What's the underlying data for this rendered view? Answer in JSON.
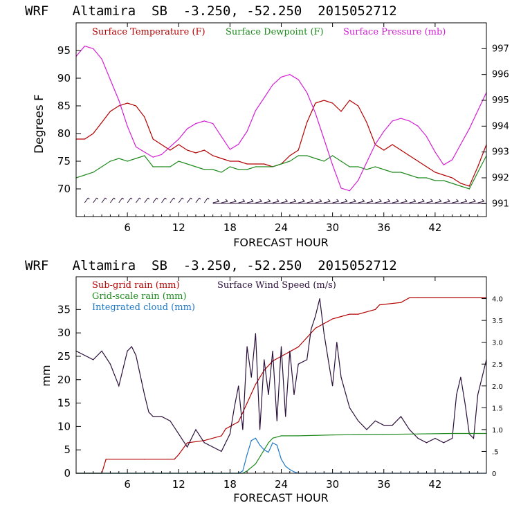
{
  "chart_data": [
    {
      "type": "line",
      "title": "WRF   Altamira  SB  -3.250, -52.250  2015052712",
      "xlabel": "FORECAST HOUR",
      "ylabel": "Degrees F",
      "xlim": [
        0,
        48
      ],
      "ylim": [
        65,
        100
      ],
      "y2lim": [
        990.5,
        998
      ],
      "xticks": [
        6,
        12,
        18,
        24,
        30,
        36,
        42
      ],
      "yticks": [
        70,
        75,
        80,
        85,
        90,
        95
      ],
      "y2ticks": [
        991,
        992,
        993,
        994,
        995,
        996,
        997
      ],
      "legend": "top",
      "series": [
        {
          "name": "Surface Temperature (F)",
          "color": "#b30000",
          "axis": "left",
          "x": [
            0,
            1,
            2,
            3,
            3.5,
            4,
            5,
            6,
            7,
            8,
            8.5,
            9,
            10,
            11,
            12,
            13,
            14,
            15,
            16,
            17,
            18,
            19,
            20,
            21,
            22,
            23,
            24,
            25,
            26,
            27,
            28,
            29,
            30,
            31,
            32,
            33,
            34,
            35,
            36,
            37,
            38,
            39,
            40,
            41,
            42,
            43,
            44,
            45,
            46,
            47,
            48
          ],
          "y": [
            79,
            79,
            80,
            82,
            83,
            84,
            85,
            85.5,
            85,
            83,
            81,
            79,
            78,
            77,
            78,
            77,
            76.5,
            77,
            76,
            75.5,
            75,
            75,
            74.5,
            74.5,
            74.5,
            74,
            74.5,
            76,
            77,
            82,
            85.5,
            86,
            85.5,
            84,
            86,
            85,
            82,
            78,
            77,
            78,
            77,
            76,
            75,
            74,
            73,
            72.5,
            72,
            71,
            70.5,
            74,
            78
          ]
        },
        {
          "name": "Surface Dewpoint (F)",
          "color": "#1e8a1e",
          "axis": "left",
          "x": [
            0,
            1,
            2,
            3,
            4,
            5,
            6,
            7,
            8,
            9,
            10,
            11,
            12,
            13,
            14,
            15,
            16,
            17,
            18,
            19,
            20,
            21,
            22,
            23,
            24,
            25,
            26,
            27,
            28,
            29,
            30,
            31,
            32,
            33,
            34,
            35,
            36,
            37,
            38,
            39,
            40,
            41,
            42,
            43,
            44,
            45,
            46,
            47,
            48
          ],
          "y": [
            72,
            72.5,
            73,
            74,
            75,
            75.5,
            75,
            75.5,
            76,
            74,
            74,
            74,
            75,
            74.5,
            74,
            73.5,
            73.5,
            73,
            74,
            73.5,
            73.5,
            74,
            74,
            74,
            74.5,
            75,
            76,
            76,
            75.5,
            75,
            76,
            75,
            74,
            74,
            73.5,
            74,
            73.5,
            73,
            73,
            72.5,
            72,
            72,
            71.5,
            71.5,
            71,
            70.5,
            70,
            73,
            76
          ]
        },
        {
          "name": "Surface Pressure (mb)",
          "color": "#d21ed2",
          "axis": "right",
          "x": [
            0,
            1,
            2,
            3,
            4,
            5,
            6,
            7,
            8,
            9,
            10,
            11,
            12,
            13,
            14,
            15,
            16,
            17,
            18,
            19,
            20,
            21,
            22,
            23,
            24,
            25,
            26,
            27,
            28,
            29,
            30,
            31,
            32,
            33,
            34,
            35,
            36,
            37,
            38,
            39,
            40,
            41,
            42,
            43,
            44,
            45,
            46,
            47,
            48
          ],
          "y": [
            996.7,
            997.1,
            997,
            996.6,
            995.8,
            995,
            994,
            993.2,
            993,
            992.8,
            992.9,
            993.2,
            993.5,
            993.9,
            994.1,
            994.2,
            994.1,
            993.6,
            993.1,
            993.3,
            993.8,
            994.6,
            995.1,
            995.6,
            995.9,
            996,
            995.8,
            995.3,
            994.5,
            993.5,
            992.5,
            991.6,
            991.5,
            991.9,
            992.6,
            993.3,
            993.8,
            994.2,
            994.3,
            994.2,
            994,
            993.6,
            993,
            992.5,
            992.7,
            993.3,
            993.9,
            994.6,
            995.3
          ]
        },
        {
          "name": "",
          "type": "wind_barbs",
          "color": "#2a0f3a",
          "value": 67.5,
          "x": [
            1,
            2,
            3,
            4,
            5,
            6,
            7,
            8,
            9,
            10,
            11,
            12,
            13,
            14,
            15,
            16,
            17,
            18,
            19,
            20,
            21,
            22,
            23,
            24,
            25,
            26,
            27,
            28,
            29,
            30,
            31,
            32,
            33,
            34,
            35,
            36,
            37,
            38,
            39,
            40,
            41,
            42,
            43,
            44,
            45,
            46,
            47
          ]
        }
      ]
    },
    {
      "type": "line",
      "title": "WRF   Altamira  SB  -3.250, -52.250  2015052712",
      "xlabel": "FORECAST HOUR",
      "ylabel": "mm",
      "xlim": [
        0,
        48
      ],
      "ylim": [
        0,
        42
      ],
      "y2lim": [
        0,
        4.5
      ],
      "xticks": [
        6,
        12,
        18,
        24,
        30,
        36,
        42
      ],
      "yticks": [
        0,
        5,
        10,
        15,
        20,
        25,
        30,
        35
      ],
      "y2ticks": [
        0,
        0.5,
        1.0,
        1.5,
        2.0,
        2.5,
        3.0,
        3.5,
        4.0
      ],
      "y2ticklabels": [
        "0",
        ".5",
        "1.0",
        "1.5",
        "2.0",
        "2.5",
        "3.0",
        "3.5",
        "4.0"
      ],
      "legend": "top-left",
      "series": [
        {
          "name": "Sub-grid rain (mm)",
          "color": "#b30000",
          "axis": "left",
          "x": [
            0,
            3,
            3.5,
            8,
            11.5,
            12,
            13,
            15,
            17,
            17.5,
            19,
            20,
            21,
            22,
            23,
            24,
            25,
            26,
            27,
            28,
            29,
            30,
            31,
            32,
            33,
            34,
            35,
            35.5,
            38,
            39,
            40,
            48
          ],
          "y": [
            0,
            0,
            3,
            3,
            3,
            4,
            6.5,
            7,
            8,
            9.5,
            11,
            15,
            19,
            22,
            24,
            25,
            26,
            27,
            29,
            31,
            32,
            33,
            33.5,
            34,
            34,
            34.5,
            35,
            36,
            36.5,
            37.5,
            37.5,
            37.5
          ]
        },
        {
          "name": "Surface Wind Speed (m/s)",
          "color": "#2a0f3a",
          "axis": "right",
          "x": [
            0,
            1,
            2,
            3,
            4,
            5,
            6,
            6.5,
            7,
            8,
            8.5,
            9,
            10,
            11,
            12,
            13,
            14,
            15,
            16,
            17,
            18,
            18.5,
            19,
            19.5,
            20,
            20.5,
            21,
            21.5,
            22,
            22.5,
            23,
            23.5,
            24,
            24.5,
            25,
            25.5,
            26,
            27,
            27.5,
            28,
            28.5,
            29,
            29.5,
            30,
            30.5,
            31,
            32,
            33,
            34,
            35,
            36,
            37,
            38,
            39,
            40,
            41,
            42,
            43,
            44,
            44.5,
            45,
            45.5,
            46,
            46.5,
            47,
            47.5,
            48
          ],
          "y": [
            2.8,
            2.7,
            2.6,
            2.8,
            2.5,
            2.0,
            2.8,
            2.9,
            2.7,
            1.8,
            1.4,
            1.3,
            1.3,
            1.2,
            0.9,
            0.6,
            1.0,
            0.7,
            0.6,
            0.5,
            0.9,
            1.5,
            2.0,
            1.0,
            2.9,
            2.2,
            3.2,
            1.0,
            2.6,
            1.8,
            2.8,
            1.2,
            2.9,
            1.3,
            2.8,
            1.8,
            2.5,
            2.6,
            3.3,
            3.6,
            4.0,
            3.2,
            2.6,
            2.0,
            3.0,
            2.2,
            1.5,
            1.2,
            1.0,
            1.2,
            1.1,
            1.1,
            1.3,
            1.0,
            0.8,
            0.7,
            0.8,
            0.7,
            0.8,
            1.8,
            2.2,
            1.6,
            0.9,
            0.8,
            1.8,
            2.2,
            2.6
          ]
        },
        {
          "name": "Grid-scale rain (mm)",
          "color": "#1e8a1e",
          "axis": "left",
          "x": [
            0,
            19.5,
            20,
            21,
            22,
            22.5,
            23,
            24,
            26,
            30,
            36,
            40,
            44,
            48
          ],
          "y": [
            0,
            0,
            0.5,
            2,
            5,
            6.5,
            7.5,
            8,
            8,
            8.2,
            8.3,
            8.4,
            8.5,
            8.5
          ]
        },
        {
          "name": "Integrated cloud (mm)",
          "color": "#1f78c8",
          "axis": "left",
          "x": [
            0,
            19,
            19.5,
            20,
            20.5,
            21,
            21.5,
            22,
            22.5,
            23,
            23.5,
            24,
            24.5,
            25,
            25.5,
            26,
            48
          ],
          "y": [
            0,
            0,
            0.5,
            4,
            7,
            7.5,
            6,
            5,
            4.5,
            6.5,
            6,
            3,
            1.5,
            0.8,
            0.3,
            0,
            0
          ]
        }
      ]
    }
  ]
}
